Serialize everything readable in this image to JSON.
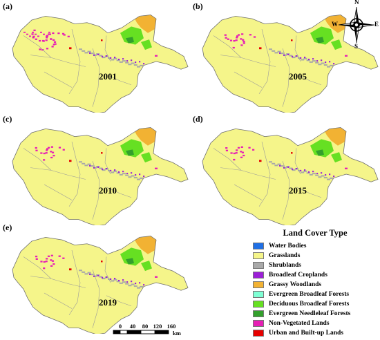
{
  "panels": [
    {
      "label": "(a)",
      "year": "2001"
    },
    {
      "label": "(b)",
      "year": "2005"
    },
    {
      "label": "(c)",
      "year": "2010"
    },
    {
      "label": "(d)",
      "year": "2015"
    },
    {
      "label": "(e)",
      "year": "2019"
    }
  ],
  "compass": {
    "n": "N",
    "s": "S",
    "e": "E",
    "w": "W"
  },
  "legend": {
    "title": "Land Cover Type",
    "items": [
      {
        "label": "Water Bodies",
        "color": "#1f6fe5"
      },
      {
        "label": "Grasslands",
        "color": "#f5f58a"
      },
      {
        "label": "Shrublands",
        "color": "#a9a9a9"
      },
      {
        "label": "Broadleaf Croplands",
        "color": "#9b1fd6"
      },
      {
        "label": "Grassy Woodlands",
        "color": "#f2b233"
      },
      {
        "label": "Evergreen Broadleaf Forests",
        "color": "#7fffd4"
      },
      {
        "label": "Deciduous Broadleaf Forests",
        "color": "#66e022"
      },
      {
        "label": "Evergreen Needleleaf Forests",
        "color": "#33a02c"
      },
      {
        "label": "Non-Vegetated Lands",
        "color": "#e61fb5"
      },
      {
        "label": "Urban and Built-up Lands",
        "color": "#e60000"
      }
    ]
  },
  "scale": {
    "ticks": [
      "0",
      "40",
      "80",
      "120",
      "160"
    ],
    "unit": "km"
  }
}
